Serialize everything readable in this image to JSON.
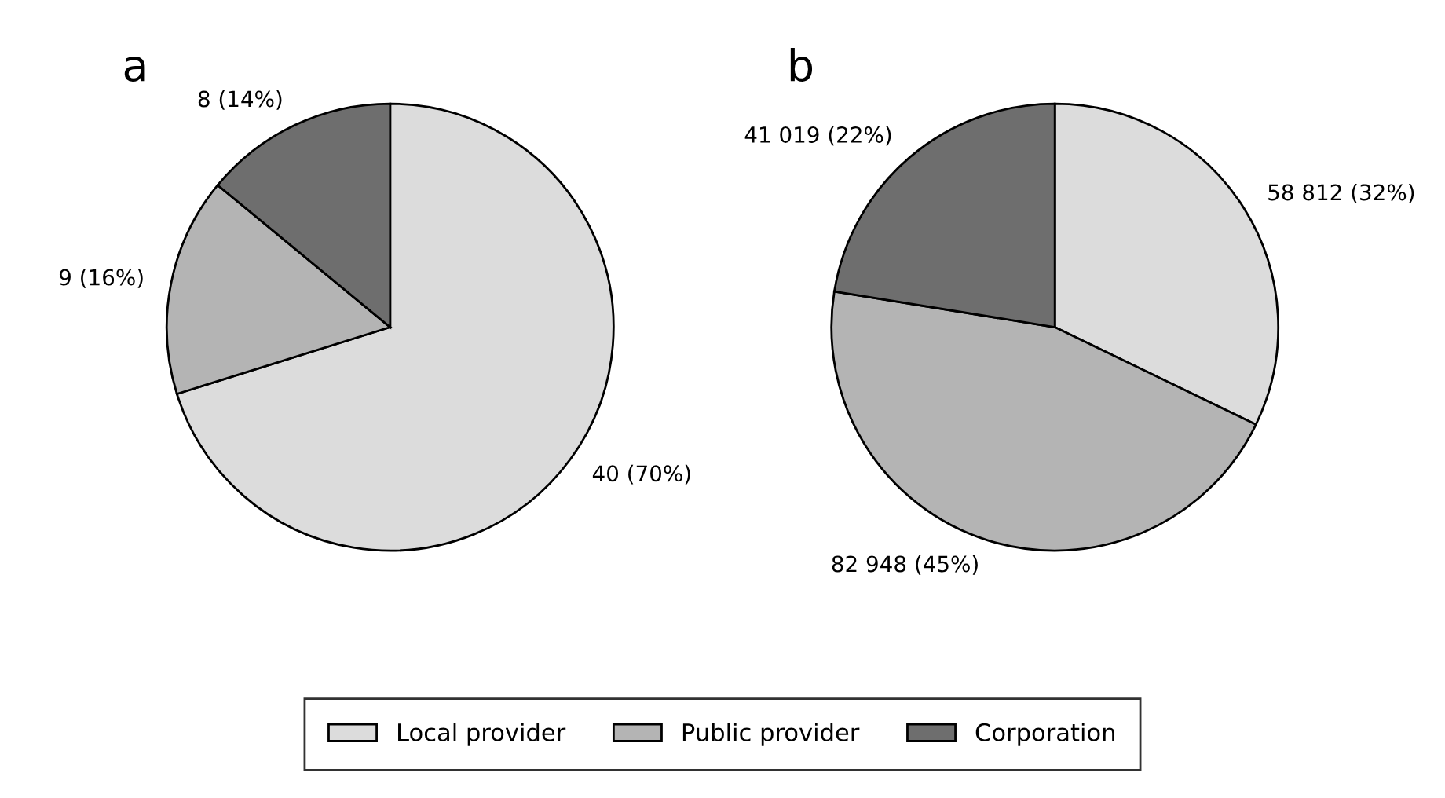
{
  "chart_data": [
    {
      "type": "pie",
      "title": "a",
      "categories": [
        "Local provider",
        "Public provider",
        "Corporation"
      ],
      "values": [
        40,
        9,
        8
      ],
      "value_labels": [
        "40 (70%)",
        "9 (16%)",
        "8 (14%)"
      ],
      "colors": [
        "#dcdcdc",
        "#b4b4b4",
        "#6e6e6e"
      ],
      "legend": "bottom"
    },
    {
      "type": "pie",
      "title": "b",
      "categories": [
        null,
        null,
        null
      ],
      "values": [
        58812,
        82948,
        41019
      ],
      "value_labels": [
        "58 812 (32%)",
        "82 948 (45%)",
        "41 019 (22%)"
      ],
      "colors": [
        "#dcdcdc",
        "#b4b4b4",
        "#6e6e6e"
      ]
    }
  ]
}
